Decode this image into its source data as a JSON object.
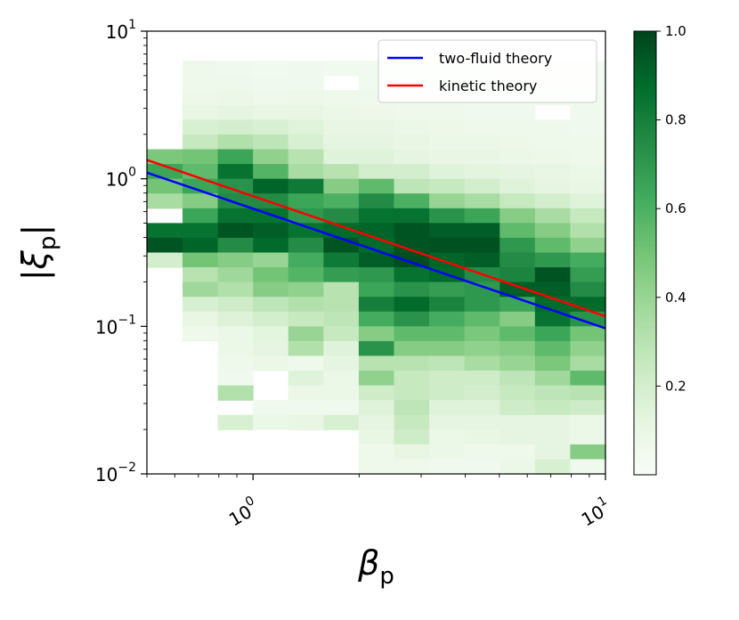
{
  "chart_data": {
    "type": "heatmap",
    "title": "",
    "xlabel": "β",
    "xlabel_sub": "p",
    "ylabel": "|ξ",
    "ylabel_sub": "p",
    "ylabel_close": "|",
    "xscale": "log",
    "yscale": "log",
    "xlim": [
      0.5,
      10
    ],
    "ylim": [
      0.01,
      10
    ],
    "x_ticks": [
      {
        "value": 1,
        "base": "10",
        "exp": "0"
      },
      {
        "value": 10,
        "base": "10",
        "exp": "1"
      }
    ],
    "y_ticks": [
      {
        "value": 0.01,
        "base": "10",
        "exp": "−2"
      },
      {
        "value": 0.1,
        "base": "10",
        "exp": "−1"
      },
      {
        "value": 1,
        "base": "10",
        "exp": "0"
      },
      {
        "value": 10,
        "base": "10",
        "exp": "1"
      }
    ],
    "colormap": "Greens",
    "color_low": "#f7fcf5",
    "color_high": "#00441b",
    "colorbar": {
      "range": [
        0,
        1
      ],
      "ticks": [
        "0.2",
        "0.4",
        "0.6",
        "0.8",
        "1.0"
      ],
      "tick_values": [
        0.2,
        0.4,
        0.6,
        0.8,
        1.0
      ]
    },
    "grid": {
      "x_edges_log10": [
        -0.3,
        -0.2,
        -0.1,
        0.0,
        0.1,
        0.2,
        0.3,
        0.4,
        0.5,
        0.6,
        0.7,
        0.8,
        0.9,
        1.0
      ],
      "y_edges_log10": [
        -2.0,
        -1.9,
        -1.8,
        -1.7,
        -1.6,
        -1.5,
        -1.4,
        -1.3,
        -1.2,
        -1.1,
        -1.0,
        -0.9,
        -0.8,
        -0.7,
        -0.6,
        -0.5,
        -0.4,
        -0.3,
        -0.2,
        -0.1,
        0.0,
        0.1,
        0.2,
        0.3,
        0.4,
        0.5,
        0.6,
        0.7,
        0.8
      ],
      "rows_from_top": [
        [
          0.0,
          0.06,
          0.05,
          0.04,
          0.05,
          0.04,
          0.04,
          0.04,
          0.04,
          0.04,
          0.03,
          0.03,
          0.03
        ],
        [
          0.0,
          0.06,
          0.06,
          0.05,
          0.05,
          0.0,
          0.04,
          0.04,
          0.04,
          0.04,
          0.03,
          0.03,
          0.03
        ],
        [
          0.0,
          0.07,
          0.08,
          0.06,
          0.07,
          0.06,
          0.05,
          0.05,
          0.05,
          0.04,
          0.04,
          0.04,
          0.04
        ],
        [
          0.0,
          0.1,
          0.12,
          0.1,
          0.1,
          0.08,
          0.07,
          0.06,
          0.06,
          0.05,
          0.05,
          0.0,
          0.05
        ],
        [
          0.0,
          0.18,
          0.2,
          0.18,
          0.15,
          0.1,
          0.1,
          0.08,
          0.07,
          0.06,
          0.06,
          0.06,
          0.05
        ],
        [
          0.0,
          0.25,
          0.32,
          0.28,
          0.18,
          0.12,
          0.12,
          0.1,
          0.08,
          0.08,
          0.07,
          0.06,
          0.06
        ],
        [
          0.48,
          0.5,
          0.65,
          0.42,
          0.3,
          0.15,
          0.15,
          0.12,
          0.1,
          0.1,
          0.08,
          0.07,
          0.06
        ],
        [
          0.65,
          0.55,
          0.85,
          0.58,
          0.35,
          0.3,
          0.2,
          0.2,
          0.15,
          0.13,
          0.12,
          0.1,
          0.08
        ],
        [
          0.5,
          0.65,
          0.72,
          0.9,
          0.82,
          0.45,
          0.55,
          0.28,
          0.25,
          0.2,
          0.15,
          0.12,
          0.1
        ],
        [
          0.35,
          0.45,
          0.75,
          0.75,
          0.65,
          0.6,
          0.75,
          0.6,
          0.4,
          0.35,
          0.25,
          0.2,
          0.15
        ],
        [
          0.0,
          0.65,
          0.85,
          0.85,
          0.7,
          0.75,
          0.85,
          0.85,
          0.72,
          0.65,
          0.45,
          0.35,
          0.25
        ],
        [
          0.85,
          0.85,
          0.95,
          0.92,
          0.85,
          0.88,
          0.9,
          0.95,
          0.92,
          0.92,
          0.55,
          0.45,
          0.32
        ],
        [
          0.95,
          0.9,
          0.75,
          0.88,
          0.75,
          0.95,
          0.88,
          0.95,
          0.96,
          0.96,
          0.7,
          0.55,
          0.42
        ],
        [
          0.2,
          0.5,
          0.45,
          0.4,
          0.62,
          0.82,
          0.92,
          0.97,
          0.9,
          0.92,
          0.75,
          0.7,
          0.62
        ],
        [
          0.0,
          0.3,
          0.38,
          0.5,
          0.58,
          0.68,
          0.7,
          0.85,
          0.88,
          0.75,
          0.78,
          0.95,
          0.68
        ],
        [
          0.0,
          0.38,
          0.32,
          0.45,
          0.42,
          0.3,
          0.65,
          0.72,
          0.68,
          0.7,
          0.92,
          0.92,
          0.75
        ],
        [
          0.0,
          0.18,
          0.22,
          0.28,
          0.32,
          0.3,
          0.8,
          0.88,
          0.78,
          0.7,
          0.65,
          0.88,
          0.88
        ],
        [
          0.0,
          0.1,
          0.16,
          0.2,
          0.25,
          0.28,
          0.62,
          0.72,
          0.62,
          0.55,
          0.45,
          0.85,
          0.72
        ],
        [
          0.0,
          0.06,
          0.08,
          0.13,
          0.4,
          0.25,
          0.45,
          0.55,
          0.55,
          0.48,
          0.55,
          0.65,
          0.5
        ],
        [
          0.0,
          0.0,
          0.08,
          0.12,
          0.32,
          0.15,
          0.72,
          0.45,
          0.45,
          0.42,
          0.45,
          0.55,
          0.42
        ],
        [
          0.0,
          0.0,
          0.06,
          0.08,
          0.06,
          0.12,
          0.3,
          0.3,
          0.28,
          0.35,
          0.4,
          0.48,
          0.35
        ],
        [
          0.0,
          0.0,
          0.05,
          0.0,
          0.15,
          0.08,
          0.42,
          0.25,
          0.22,
          0.22,
          0.28,
          0.38,
          0.55
        ],
        [
          0.0,
          0.0,
          0.32,
          0.0,
          0.08,
          0.08,
          0.22,
          0.25,
          0.22,
          0.2,
          0.25,
          0.28,
          0.3
        ],
        [
          0.0,
          0.0,
          0.0,
          0.05,
          0.05,
          0.05,
          0.15,
          0.28,
          0.15,
          0.15,
          0.22,
          0.25,
          0.22
        ],
        [
          0.0,
          0.0,
          0.18,
          0.08,
          0.1,
          0.18,
          0.12,
          0.25,
          0.12,
          0.12,
          0.12,
          0.12,
          0.08
        ],
        [
          0.0,
          0.0,
          0.0,
          0.0,
          0.0,
          0.0,
          0.1,
          0.22,
          0.08,
          0.1,
          0.12,
          0.12,
          0.08
        ],
        [
          0.0,
          0.0,
          0.0,
          0.0,
          0.0,
          0.0,
          0.06,
          0.1,
          0.08,
          0.06,
          0.06,
          0.12,
          0.45
        ],
        [
          0.0,
          0.0,
          0.0,
          0.0,
          0.0,
          0.0,
          0.06,
          0.06,
          0.05,
          0.05,
          0.08,
          0.18,
          0.05
        ]
      ]
    },
    "series": [
      {
        "name": "two-fluid theory",
        "color": "#0000ff",
        "x": [
          0.5,
          10
        ],
        "y": [
          1.1,
          0.097
        ]
      },
      {
        "name": "kinetic theory",
        "color": "#ff0000",
        "x": [
          0.5,
          10
        ],
        "y": [
          1.34,
          0.117
        ]
      }
    ],
    "legend": {
      "position": "top-right"
    }
  }
}
